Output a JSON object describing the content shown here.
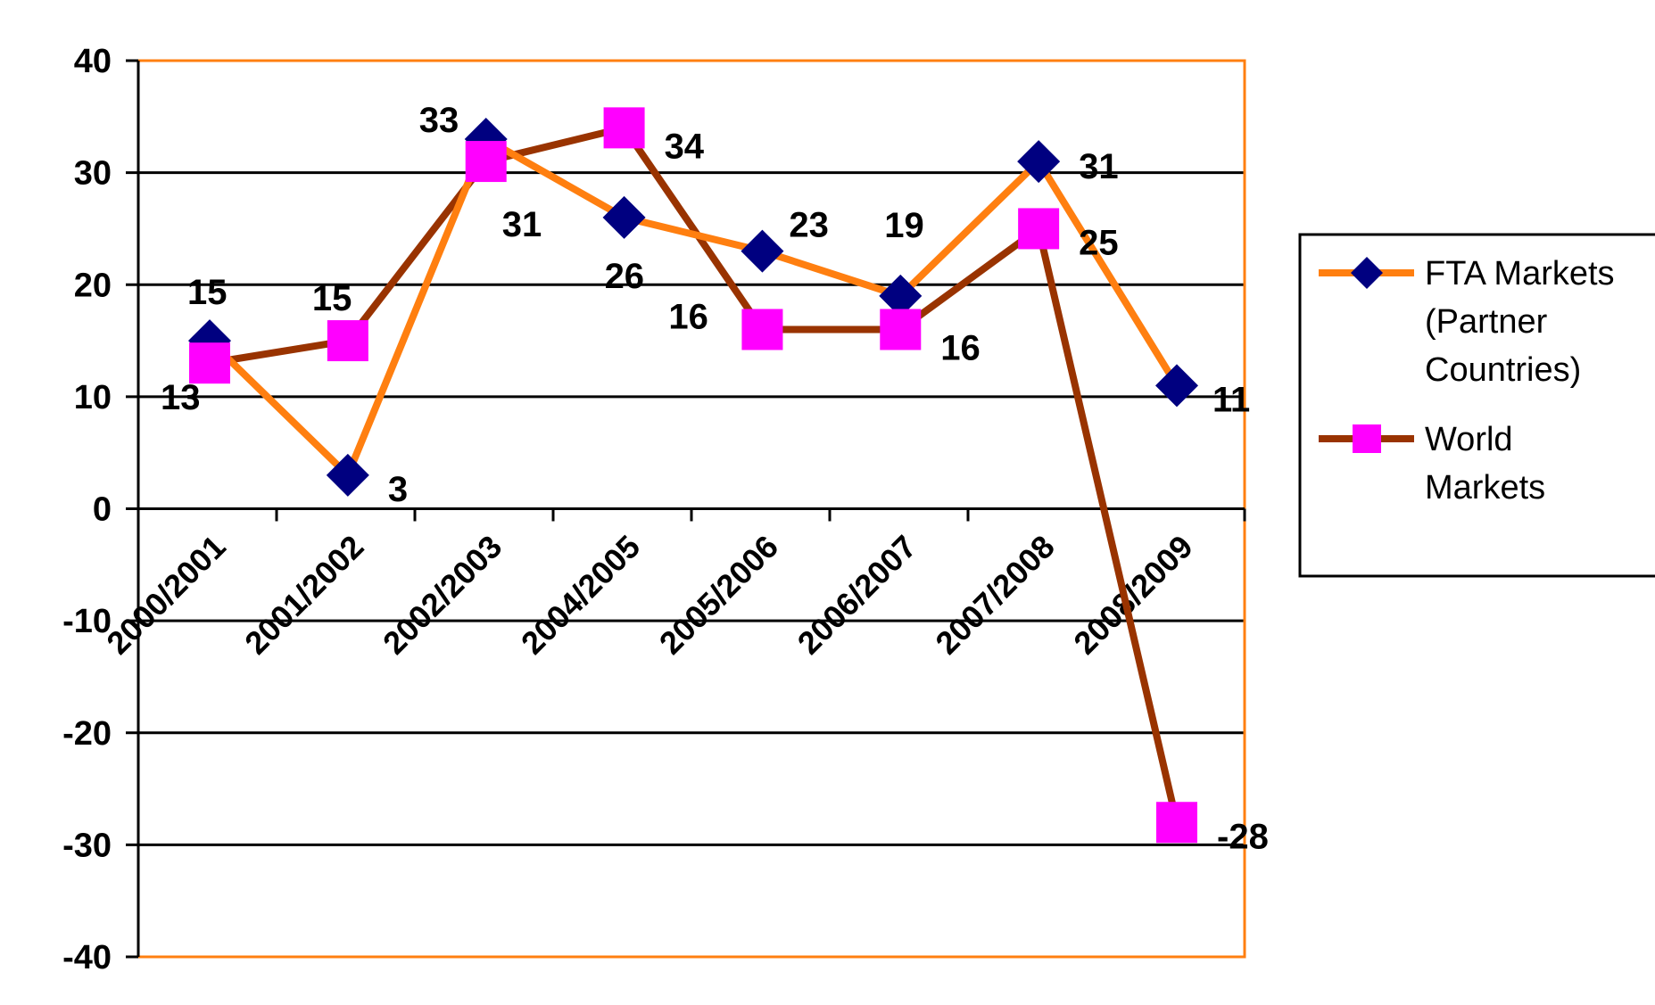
{
  "chart_data": {
    "type": "line",
    "title": "",
    "xlabel": "",
    "ylabel": "",
    "categories": [
      "2000/2001",
      "2001/2002",
      "2002/2003",
      "2004/2005",
      "2005/2006",
      "2006/2007",
      "2007/2008",
      "2008/2009"
    ],
    "y_ticks": [
      "40",
      "30",
      "20",
      "10",
      "0",
      "-10",
      "-20",
      "-30",
      "-40"
    ],
    "ylim": [
      -40,
      40
    ],
    "grid": true,
    "legend_position": "right",
    "series": [
      {
        "name": "FTA Markets (Partner Countries)",
        "legend_lines": [
          "FTA Markets",
          "(Partner",
          "Countries)"
        ],
        "color": "#FF7F10",
        "marker": "diamond",
        "marker_color": "#000080",
        "values": [
          15,
          3,
          33,
          26,
          23,
          19,
          31,
          11
        ],
        "data_labels": [
          "15",
          "3",
          "33",
          "26",
          "23",
          "19",
          "31",
          "11"
        ]
      },
      {
        "name": "World Markets",
        "legend_lines": [
          "World",
          "Markets"
        ],
        "color": "#993300",
        "marker": "square",
        "marker_color": "#FF00FF",
        "values": [
          13,
          15,
          31,
          34,
          16,
          16,
          25,
          -28
        ],
        "data_labels": [
          "13",
          "15",
          "31",
          "34",
          "16",
          "16",
          "25",
          "-28"
        ]
      }
    ]
  }
}
